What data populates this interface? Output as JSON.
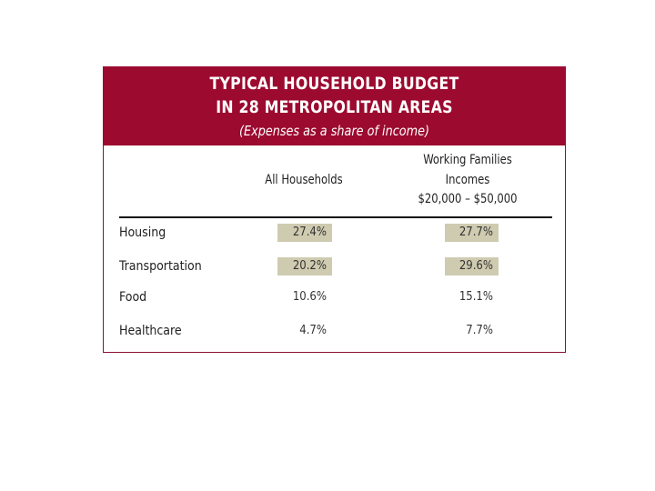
{
  "title_line1": "TYPICAL HOUSEHOLD BUDGET",
  "title_line2": "IN 28 METROPOLITAN AREAS",
  "subtitle": "(Expenses as a share of income)",
  "colors": {
    "header": "#9c0a2f",
    "highlight": "#cfcbb0"
  },
  "columns": {
    "all": "All Households",
    "working_line1": "Working Families",
    "working_line2": "Incomes",
    "working_line3": "$20,000 – $50,000"
  },
  "rows": [
    {
      "label": "Housing",
      "all": "27.4%",
      "working": "27.7%",
      "highlighted": true
    },
    {
      "label": "Transportation",
      "all": "20.2%",
      "working": "29.6%",
      "highlighted": true
    },
    {
      "label": "Food",
      "all": "10.6%",
      "working": "15.1%",
      "highlighted": false
    },
    {
      "label": "Healthcare",
      "all": "4.7%",
      "working": "7.7%",
      "highlighted": false
    }
  ],
  "chart_data": {
    "type": "table",
    "title": "TYPICAL HOUSEHOLD BUDGET IN 28 METROPOLITAN AREAS",
    "subtitle": "(Expenses as a share of income)",
    "columns": [
      "",
      "All Households",
      "Working Families Incomes $20,000 – $50,000"
    ],
    "categories": [
      "Housing",
      "Transportation",
      "Food",
      "Healthcare"
    ],
    "series": [
      {
        "name": "All Households",
        "values": [
          27.4,
          20.2,
          10.6,
          4.7
        ]
      },
      {
        "name": "Working Families Incomes $20,000 – $50,000",
        "values": [
          27.7,
          29.6,
          15.1,
          7.7
        ]
      }
    ]
  }
}
